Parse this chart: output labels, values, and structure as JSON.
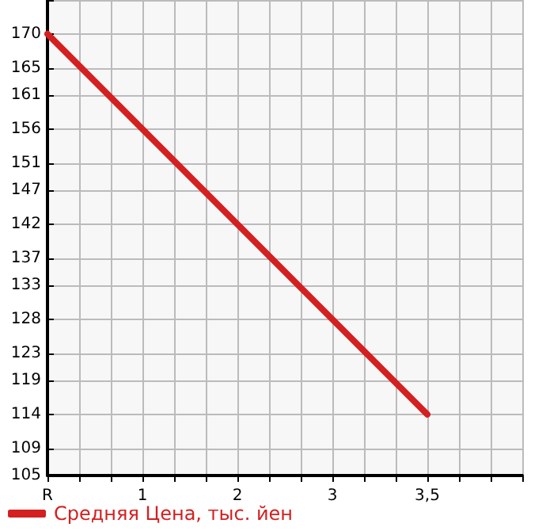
{
  "chart_data": {
    "type": "line",
    "categories": [
      "R",
      null,
      null,
      "1",
      null,
      null,
      "2",
      null,
      null,
      "3",
      null,
      null,
      "3,5",
      null,
      null,
      null
    ],
    "series": [
      {
        "name": "Средняя Цена, тыс. йен",
        "color": "#d42020",
        "x": [
          "R",
          "3,5"
        ],
        "values": [
          170,
          114
        ]
      }
    ],
    "ylim": [
      105,
      175
    ],
    "yticks": [
      105,
      109,
      114,
      119,
      123,
      128,
      133,
      137,
      142,
      147,
      151,
      156,
      161,
      165,
      170,
      {
        "value": 175,
        "label": null
      }
    ],
    "grid": true,
    "legend": "bottom left",
    "marker": "none",
    "line_style": "solid"
  }
}
